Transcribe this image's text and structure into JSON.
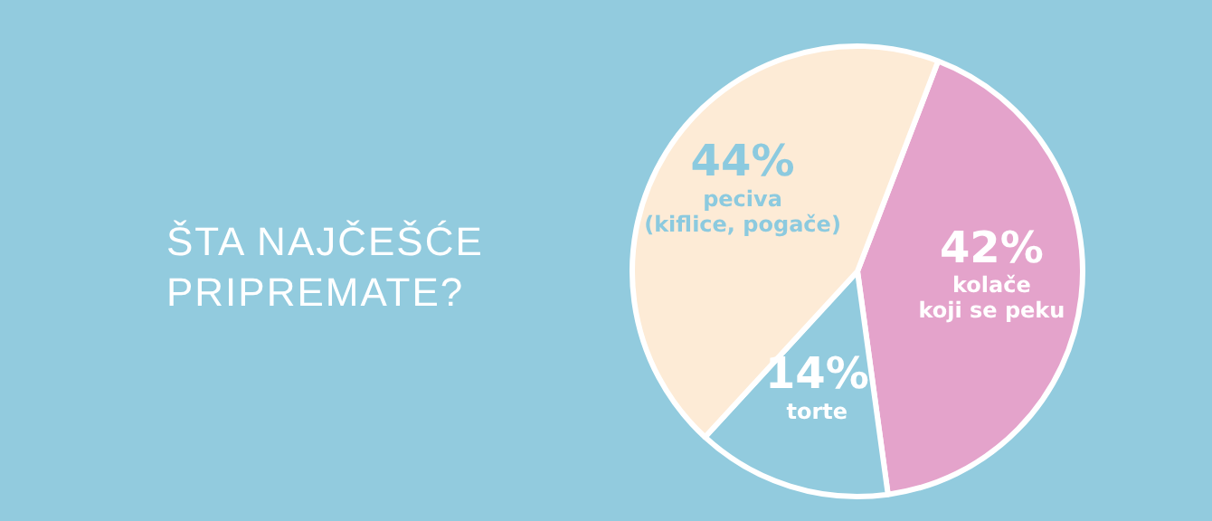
{
  "chart_data": {
    "type": "pie",
    "title": "ŠTA NAJČEŠĆE\nPRIPREMATE?",
    "categories": [
      "kolače\nkoji se peku",
      "torte",
      "peciva\n(kiflice, pogače)"
    ],
    "values": [
      42,
      14,
      44
    ],
    "value_labels": [
      "42%",
      "14%",
      "44%"
    ],
    "colors": [
      "#e4a3cb",
      "#92cbde",
      "#fdebd6"
    ],
    "legend": false
  }
}
